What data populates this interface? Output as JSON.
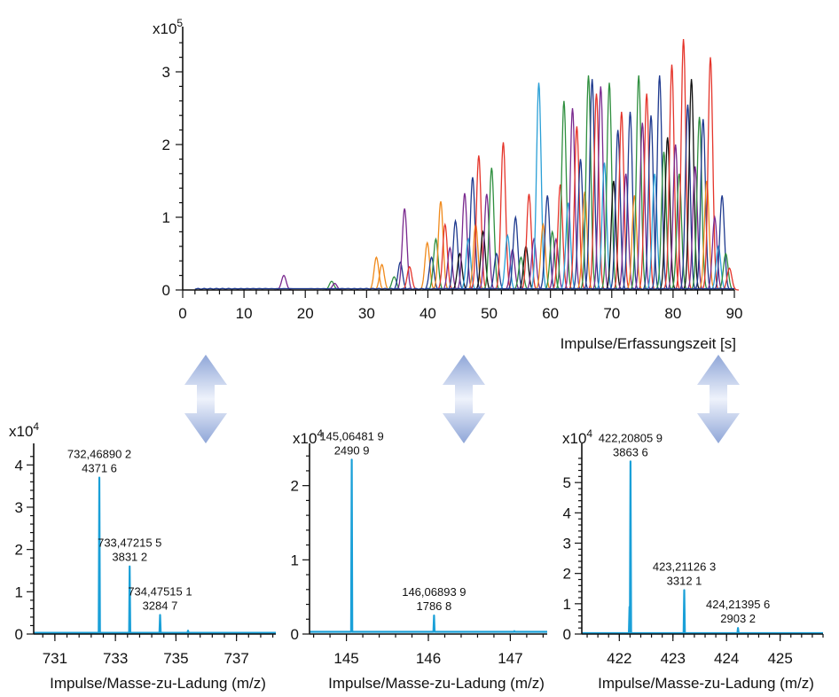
{
  "chart_data": [
    {
      "type": "line",
      "title": "",
      "xlabel": "Impulse/Erfassungszeit [s]",
      "ylabel": "",
      "y_multiplier": "x10",
      "y_multiplier_exp": "5",
      "xlim": [
        0,
        90
      ],
      "ylim": [
        0,
        3.5
      ],
      "x_ticks": [
        "0",
        "10",
        "20",
        "30",
        "40",
        "50",
        "60",
        "70",
        "80",
        "90"
      ],
      "y_ticks": [
        "0",
        "1",
        "2",
        "3"
      ],
      "grid": false,
      "legend": "none",
      "baseline_start": 2,
      "peaks": [
        {
          "x": 16.5,
          "h": 0.2,
          "c": "#7a2a8f"
        },
        {
          "x": 24.3,
          "h": 0.12,
          "c": "#2f8f3f"
        },
        {
          "x": 24.8,
          "h": 0.09,
          "c": "#7a2a8f"
        },
        {
          "x": 31.6,
          "h": 0.45,
          "c": "#f08a1c"
        },
        {
          "x": 32.5,
          "h": 0.35,
          "c": "#f08a1c"
        },
        {
          "x": 34.5,
          "h": 0.18,
          "c": "#2f8f3f"
        },
        {
          "x": 35.5,
          "h": 0.38,
          "c": "#1f3a8f"
        },
        {
          "x": 36.2,
          "h": 1.12,
          "c": "#7a2a8f"
        },
        {
          "x": 37.0,
          "h": 0.32,
          "c": "#e5352b"
        },
        {
          "x": 39.9,
          "h": 0.65,
          "c": "#f08a1c"
        },
        {
          "x": 40.6,
          "h": 0.45,
          "c": "#1f3a8f"
        },
        {
          "x": 41.3,
          "h": 0.7,
          "c": "#2f8f3f"
        },
        {
          "x": 42.1,
          "h": 1.22,
          "c": "#f08a1c"
        },
        {
          "x": 42.8,
          "h": 0.9,
          "c": "#e5352b"
        },
        {
          "x": 43.6,
          "h": 0.58,
          "c": "#7a2a8f"
        },
        {
          "x": 44.5,
          "h": 0.95,
          "c": "#1f3a8f"
        },
        {
          "x": 45.2,
          "h": 0.5,
          "c": "#111111"
        },
        {
          "x": 46.0,
          "h": 1.33,
          "c": "#7a2a8f"
        },
        {
          "x": 46.6,
          "h": 0.7,
          "c": "#2a9fd6"
        },
        {
          "x": 47.3,
          "h": 1.55,
          "c": "#1f3a8f"
        },
        {
          "x": 47.8,
          "h": 0.9,
          "c": "#f08a1c"
        },
        {
          "x": 48.3,
          "h": 1.85,
          "c": "#e5352b"
        },
        {
          "x": 49.0,
          "h": 0.8,
          "c": "#111111"
        },
        {
          "x": 49.6,
          "h": 1.32,
          "c": "#7a2a8f"
        },
        {
          "x": 50.4,
          "h": 1.68,
          "c": "#2f8f3f"
        },
        {
          "x": 51.2,
          "h": 0.5,
          "c": "#1f3a8f"
        },
        {
          "x": 52.3,
          "h": 2.03,
          "c": "#e5352b"
        },
        {
          "x": 53.0,
          "h": 0.75,
          "c": "#2a9fd6"
        },
        {
          "x": 53.8,
          "h": 0.55,
          "c": "#7a2a8f"
        },
        {
          "x": 54.3,
          "h": 1.0,
          "c": "#1f3a8f"
        },
        {
          "x": 55.2,
          "h": 0.45,
          "c": "#2f8f3f"
        },
        {
          "x": 56.0,
          "h": 0.6,
          "c": "#111111"
        },
        {
          "x": 56.5,
          "h": 1.32,
          "c": "#e5352b"
        },
        {
          "x": 57.3,
          "h": 0.7,
          "c": "#7a2a8f"
        },
        {
          "x": 58.1,
          "h": 2.85,
          "c": "#2a9fd6"
        },
        {
          "x": 58.8,
          "h": 0.9,
          "c": "#f08a1c"
        },
        {
          "x": 59.5,
          "h": 1.3,
          "c": "#1f3a8f"
        },
        {
          "x": 60.3,
          "h": 0.8,
          "c": "#2f8f3f"
        },
        {
          "x": 60.9,
          "h": 0.7,
          "c": "#7a2a8f"
        },
        {
          "x": 61.6,
          "h": 1.45,
          "c": "#e5352b"
        },
        {
          "x": 62.2,
          "h": 2.6,
          "c": "#2f8f3f"
        },
        {
          "x": 62.9,
          "h": 1.2,
          "c": "#2a9fd6"
        },
        {
          "x": 63.6,
          "h": 2.5,
          "c": "#7a2a8f"
        },
        {
          "x": 64.3,
          "h": 2.25,
          "c": "#e5352b"
        },
        {
          "x": 64.9,
          "h": 1.8,
          "c": "#1f3a8f"
        },
        {
          "x": 65.6,
          "h": 1.35,
          "c": "#f08a1c"
        },
        {
          "x": 66.2,
          "h": 2.95,
          "c": "#2f8f3f"
        },
        {
          "x": 66.8,
          "h": 2.9,
          "c": "#1f3a8f"
        },
        {
          "x": 67.5,
          "h": 2.7,
          "c": "#e5352b"
        },
        {
          "x": 68.2,
          "h": 2.8,
          "c": "#7a2a8f"
        },
        {
          "x": 68.8,
          "h": 1.75,
          "c": "#2a9fd6"
        },
        {
          "x": 69.6,
          "h": 2.85,
          "c": "#2f8f3f"
        },
        {
          "x": 70.3,
          "h": 1.5,
          "c": "#111111"
        },
        {
          "x": 71.0,
          "h": 2.2,
          "c": "#1f3a8f"
        },
        {
          "x": 71.6,
          "h": 2.45,
          "c": "#e5352b"
        },
        {
          "x": 72.3,
          "h": 1.6,
          "c": "#7a2a8f"
        },
        {
          "x": 73.0,
          "h": 2.45,
          "c": "#1f3a8f"
        },
        {
          "x": 73.7,
          "h": 1.3,
          "c": "#f08a1c"
        },
        {
          "x": 74.4,
          "h": 2.95,
          "c": "#2f8f3f"
        },
        {
          "x": 75.0,
          "h": 2.3,
          "c": "#7a2a8f"
        },
        {
          "x": 75.7,
          "h": 2.7,
          "c": "#e5352b"
        },
        {
          "x": 76.4,
          "h": 2.4,
          "c": "#1f3a8f"
        },
        {
          "x": 77.0,
          "h": 1.6,
          "c": "#2a9fd6"
        },
        {
          "x": 77.8,
          "h": 2.95,
          "c": "#1f3a8f"
        },
        {
          "x": 78.5,
          "h": 1.9,
          "c": "#2f8f3f"
        },
        {
          "x": 79.1,
          "h": 2.1,
          "c": "#111111"
        },
        {
          "x": 79.8,
          "h": 3.1,
          "c": "#e5352b"
        },
        {
          "x": 80.4,
          "h": 2.0,
          "c": "#7a2a8f"
        },
        {
          "x": 81.0,
          "h": 1.6,
          "c": "#2f8f3f"
        },
        {
          "x": 81.7,
          "h": 3.45,
          "c": "#e5352b"
        },
        {
          "x": 82.4,
          "h": 2.55,
          "c": "#1f3a8f"
        },
        {
          "x": 83.0,
          "h": 2.9,
          "c": "#111111"
        },
        {
          "x": 83.6,
          "h": 1.7,
          "c": "#7a2a8f"
        },
        {
          "x": 84.3,
          "h": 2.38,
          "c": "#2f8f3f"
        },
        {
          "x": 84.9,
          "h": 2.35,
          "c": "#1f3a8f"
        },
        {
          "x": 85.5,
          "h": 1.5,
          "c": "#f08a1c"
        },
        {
          "x": 86.1,
          "h": 3.2,
          "c": "#e5352b"
        },
        {
          "x": 86.8,
          "h": 1.0,
          "c": "#7a2a8f"
        },
        {
          "x": 87.4,
          "h": 0.6,
          "c": "#2a9fd6"
        },
        {
          "x": 88.0,
          "h": 1.3,
          "c": "#1f3a8f"
        },
        {
          "x": 88.6,
          "h": 0.5,
          "c": "#2f8f3f"
        },
        {
          "x": 89.2,
          "h": 0.3,
          "c": "#e5352b"
        }
      ]
    },
    {
      "type": "line",
      "title": "",
      "xlabel": "Impulse/Masse-zu-Ladung (m/z)",
      "ylabel": "",
      "y_multiplier": "x10",
      "y_multiplier_exp": "4",
      "color": "#1aa0d8",
      "xlim": [
        730.3,
        738.3
      ],
      "ylim": [
        0,
        4.3
      ],
      "x_ticks": [
        731,
        733,
        735,
        737
      ],
      "y_ticks": [
        0,
        1,
        2,
        3,
        4
      ],
      "peaks": [
        {
          "x": 732.4689,
          "h": 3.7
        },
        {
          "x": 733.4721,
          "h": 1.6
        },
        {
          "x": 734.4751,
          "h": 0.45
        },
        {
          "x": 735.4,
          "h": 0.08
        }
      ],
      "annotations": [
        {
          "x": 732.4689,
          "y": 3.7,
          "lines": [
            "732,46890 2",
            "4371 6"
          ]
        },
        {
          "x": 733.4721,
          "y": 1.6,
          "lines": [
            "733,47215 5",
            "3831 2"
          ]
        },
        {
          "x": 734.4751,
          "y": 0.45,
          "lines": [
            "734,47515 1",
            "3284 7"
          ]
        }
      ]
    },
    {
      "type": "line",
      "title": "",
      "xlabel": "Impulse/Masse-zu-Ladung (m/z)",
      "ylabel": "",
      "y_multiplier": "x10",
      "y_multiplier_exp": "4",
      "color": "#1aa0d8",
      "xlim": [
        144.55,
        147.45
      ],
      "ylim": [
        0,
        2.45
      ],
      "x_ticks": [
        145,
        146,
        147
      ],
      "y_ticks": [
        0,
        1,
        2
      ],
      "peaks": [
        {
          "x": 145.0648,
          "h": 2.35
        },
        {
          "x": 146.0689,
          "h": 0.25
        },
        {
          "x": 147.05,
          "h": 0.04
        }
      ],
      "annotations": [
        {
          "x": 145.0648,
          "y": 2.35,
          "lines": [
            "145,06481 9",
            "2490 9"
          ]
        },
        {
          "x": 146.0689,
          "y": 0.25,
          "lines": [
            "146,06893 9",
            "1786 8"
          ]
        }
      ]
    },
    {
      "type": "line",
      "title": "",
      "xlabel": "Impulse/Masse-zu-Ladung (m/z)",
      "ylabel": "",
      "y_multiplier": "x10",
      "y_multiplier_exp": "4",
      "color": "#1aa0d8",
      "xlim": [
        421.3,
        425.8
      ],
      "ylim": [
        0,
        6.0
      ],
      "x_ticks": [
        422,
        423,
        424,
        425
      ],
      "y_ticks": [
        0,
        1,
        2,
        3,
        4,
        5
      ],
      "peaks": [
        {
          "x": 422.2081,
          "h": 5.7
        },
        {
          "x": 422.19,
          "h": 0.9
        },
        {
          "x": 423.2113,
          "h": 1.45
        },
        {
          "x": 424.214,
          "h": 0.2
        }
      ],
      "annotations": [
        {
          "x": 422.2081,
          "y": 5.7,
          "lines": [
            "422,20805 9",
            "3863 6"
          ]
        },
        {
          "x": 423.2113,
          "y": 1.45,
          "lines": [
            "423,21126 3",
            "3312 1"
          ]
        },
        {
          "x": 424.214,
          "y": 0.2,
          "lines": [
            "424,21395 6",
            "2903 2"
          ]
        }
      ]
    }
  ]
}
